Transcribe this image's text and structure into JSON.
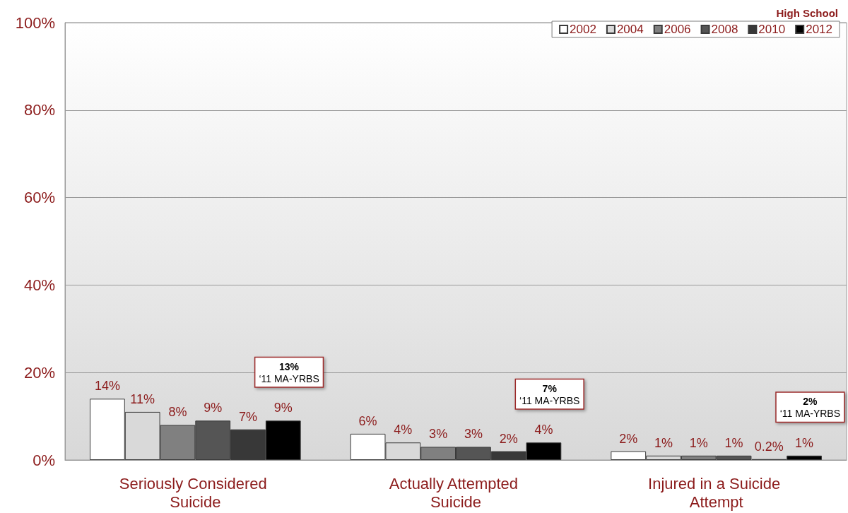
{
  "chart_data": {
    "type": "bar",
    "title": "High School",
    "categories": [
      "Seriously Considered Suicide",
      "Actually Attempted Suicide",
      "Injured in a Suicide Attempt"
    ],
    "series": [
      {
        "name": "2002",
        "color": "#ffffff",
        "values": [
          14,
          6,
          2
        ],
        "value_labels": [
          "14%",
          "6%",
          "2%"
        ]
      },
      {
        "name": "2004",
        "color": "#d9d9d9",
        "values": [
          11,
          4,
          1
        ],
        "value_labels": [
          "11%",
          "4%",
          "1%"
        ]
      },
      {
        "name": "2006",
        "color": "#808080",
        "values": [
          8,
          3,
          1
        ],
        "value_labels": [
          "8%",
          "3%",
          "1%"
        ]
      },
      {
        "name": "2008",
        "color": "#555555",
        "values": [
          9,
          3,
          1
        ],
        "value_labels": [
          "9%",
          "3%",
          "1%"
        ]
      },
      {
        "name": "2010",
        "color": "#383838",
        "values": [
          7,
          2,
          0.2
        ],
        "value_labels": [
          "7%",
          "2%",
          "0.2%"
        ]
      },
      {
        "name": "2012",
        "color": "#000000",
        "values": [
          9,
          4,
          1
        ],
        "value_labels": [
          "9%",
          "4%",
          "1%"
        ]
      }
    ],
    "ylim": [
      0,
      100
    ],
    "yticks": [
      {
        "value": 0,
        "label": "0%"
      },
      {
        "value": 20,
        "label": "20%"
      },
      {
        "value": 40,
        "label": "40%"
      },
      {
        "value": 60,
        "label": "60%"
      },
      {
        "value": 80,
        "label": "80%"
      },
      {
        "value": 100,
        "label": "100%"
      }
    ],
    "annotations": [
      "13%\n‘11 MA-YRBS",
      "7%\n‘11 MA-YRBS",
      "2%\n‘11 MA-YRBS"
    ],
    "grid": "y",
    "legend": "top right"
  }
}
